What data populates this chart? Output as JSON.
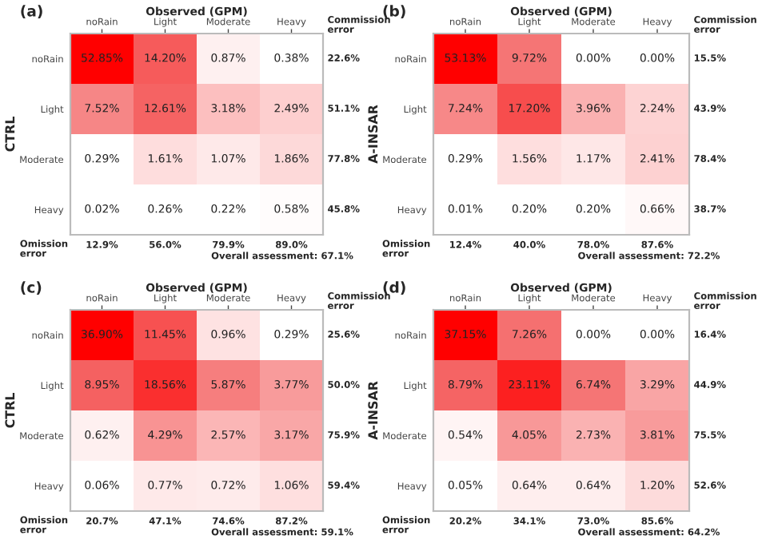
{
  "chart_data": [
    {
      "type": "heatmap",
      "title": "(a)",
      "xlabel": "Observed (GPM)",
      "ylabel": "CTRL",
      "categories": [
        "noRain",
        "Light",
        "Moderate",
        "Heavy"
      ],
      "y_categories": [
        "noRain",
        "Light",
        "Moderate",
        "Heavy"
      ],
      "y2_categories": [
        "22.6%",
        "51.1%",
        "77.8%",
        "45.8%"
      ],
      "cells": [
        [
          52.85,
          14.2,
          0.87,
          0.38
        ],
        [
          7.52,
          12.61,
          3.18,
          2.49
        ],
        [
          0.29,
          1.61,
          1.07,
          1.86
        ],
        [
          0.02,
          0.26,
          0.22,
          0.58
        ]
      ],
      "cell_labels": [
        [
          "52.85%",
          "14.20%",
          "0.87%",
          "0.38%"
        ],
        [
          "7.52%",
          "12.61%",
          "3.18%",
          "2.49%"
        ],
        [
          "0.29%",
          "1.61%",
          "1.07%",
          "1.86%"
        ],
        [
          "0.02%",
          "0.26%",
          "0.22%",
          "0.58%"
        ]
      ],
      "annotations": [
        "Commission error",
        "Omission error",
        "12.9%",
        "56.0%",
        "79.9%",
        "89.0%",
        "Overall assessment: 67.1%"
      ]
    },
    {
      "type": "heatmap",
      "title": "(b)",
      "xlabel": "Observed (GPM)",
      "ylabel": "A-INSAR",
      "categories": [
        "noRain",
        "Light",
        "Moderate",
        "Heavy"
      ],
      "y_categories": [
        "noRain",
        "Light",
        "Moderate",
        "Heavy"
      ],
      "y2_categories": [
        "15.5%",
        "43.9%",
        "78.4%",
        "38.7%"
      ],
      "cells": [
        [
          53.13,
          9.72,
          0.0,
          0.0
        ],
        [
          7.24,
          17.2,
          3.96,
          2.24
        ],
        [
          0.29,
          1.56,
          1.17,
          2.41
        ],
        [
          0.01,
          0.2,
          0.2,
          0.66
        ]
      ],
      "cell_labels": [
        [
          "53.13%",
          "9.72%",
          "0.00%",
          "0.00%"
        ],
        [
          "7.24%",
          "17.20%",
          "3.96%",
          "2.24%"
        ],
        [
          "0.29%",
          "1.56%",
          "1.17%",
          "2.41%"
        ],
        [
          "0.01%",
          "0.20%",
          "0.20%",
          "0.66%"
        ]
      ],
      "annotations": [
        "Commission error",
        "Omission error",
        "12.4%",
        "40.0%",
        "78.0%",
        "87.6%",
        "Overall assessment: 72.2%"
      ]
    },
    {
      "type": "heatmap",
      "title": "(c)",
      "xlabel": "Observed (GPM)",
      "ylabel": "CTRL",
      "categories": [
        "noRain",
        "Light",
        "Moderate",
        "Heavy"
      ],
      "y_categories": [
        "noRain",
        "Light",
        "Moderate",
        "Heavy"
      ],
      "y2_categories": [
        "25.6%",
        "50.0%",
        "75.9%",
        "59.4%"
      ],
      "cells": [
        [
          36.9,
          11.45,
          0.96,
          0.29
        ],
        [
          8.95,
          18.56,
          5.87,
          3.77
        ],
        [
          0.62,
          4.29,
          2.57,
          3.17
        ],
        [
          0.06,
          0.77,
          0.72,
          1.06
        ]
      ],
      "cell_labels": [
        [
          "36.90%",
          "11.45%",
          "0.96%",
          "0.29%"
        ],
        [
          "8.95%",
          "18.56%",
          "5.87%",
          "3.77%"
        ],
        [
          "0.62%",
          "4.29%",
          "2.57%",
          "3.17%"
        ],
        [
          "0.06%",
          "0.77%",
          "0.72%",
          "1.06%"
        ]
      ],
      "annotations": [
        "Commission error",
        "Omission error",
        "20.7%",
        "47.1%",
        "74.6%",
        "87.2%",
        "Overall assessment: 59.1%"
      ]
    },
    {
      "type": "heatmap",
      "title": "(d)",
      "xlabel": "Observed (GPM)",
      "ylabel": "A-INSAR",
      "categories": [
        "noRain",
        "Light",
        "Moderate",
        "Heavy"
      ],
      "y_categories": [
        "noRain",
        "Light",
        "Moderate",
        "Heavy"
      ],
      "y2_categories": [
        "16.4%",
        "44.9%",
        "75.5%",
        "52.6%"
      ],
      "cells": [
        [
          37.15,
          7.26,
          0.0,
          0.0
        ],
        [
          8.79,
          23.11,
          6.74,
          3.29
        ],
        [
          0.54,
          4.05,
          2.73,
          3.81
        ],
        [
          0.05,
          0.64,
          0.64,
          1.2
        ]
      ],
      "cell_labels": [
        [
          "37.15%",
          "7.26%",
          "0.00%",
          "0.00%"
        ],
        [
          "8.79%",
          "23.11%",
          "6.74%",
          "3.29%"
        ],
        [
          "0.54%",
          "4.05%",
          "2.73%",
          "3.81%"
        ],
        [
          "0.05%",
          "0.64%",
          "0.64%",
          "1.20%"
        ]
      ],
      "annotations": [
        "Commission error",
        "Omission error",
        "20.2%",
        "34.1%",
        "73.0%",
        "85.6%",
        "Overall assessment: 64.2%"
      ]
    }
  ]
}
